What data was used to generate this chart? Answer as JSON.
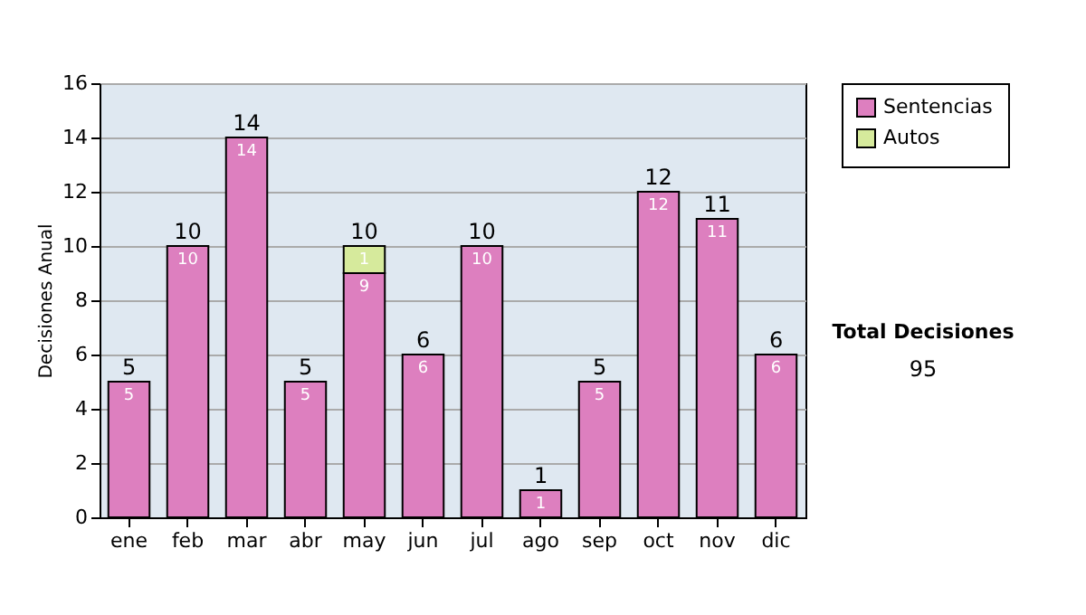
{
  "chart_data": {
    "type": "bar",
    "stacked": true,
    "ylabel": "Decisiones Anual",
    "categories": [
      "ene",
      "feb",
      "mar",
      "abr",
      "may",
      "jun",
      "jul",
      "ago",
      "sep",
      "oct",
      "nov",
      "dic"
    ],
    "series": [
      {
        "name": "Sentencias",
        "color": "#dd7fbf",
        "values": [
          5,
          10,
          14,
          5,
          9,
          6,
          10,
          1,
          5,
          12,
          11,
          6
        ]
      },
      {
        "name": "Autos",
        "color": "#d6ea9c",
        "values": [
          null,
          null,
          null,
          null,
          1,
          null,
          null,
          null,
          null,
          null,
          null,
          null
        ]
      }
    ],
    "totals": [
      "5",
      "10",
      "14",
      "5",
      "10",
      "6",
      "10",
      "1",
      "5",
      "12",
      "11",
      "6"
    ],
    "data_labels": true,
    "ylim": [
      0,
      16
    ],
    "yticks": [
      0,
      2,
      4,
      6,
      8,
      10,
      12,
      14,
      16
    ],
    "grid": "y",
    "legend": "right",
    "annotations": [
      "Total Decisiones",
      "95"
    ]
  }
}
